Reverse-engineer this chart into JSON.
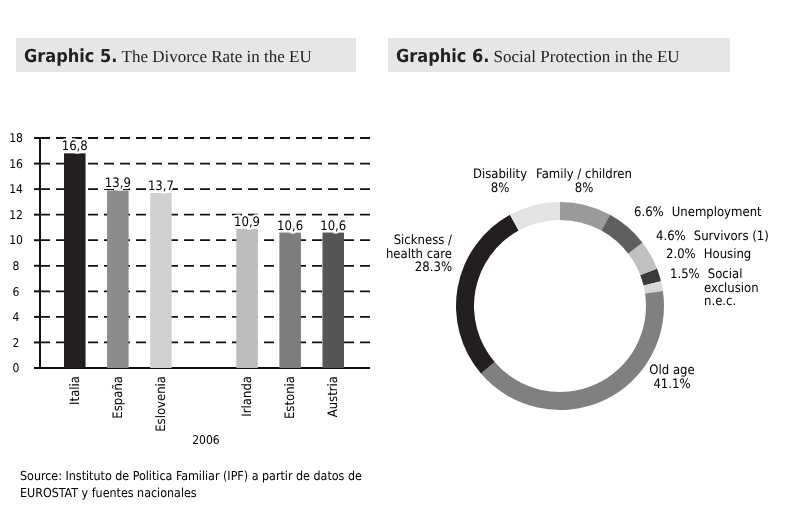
{
  "chart_data": [
    {
      "type": "bar",
      "title": "Graphic 5.",
      "subtitle": "The Divorce Rate in the EU",
      "xlabel": "2006",
      "categories": [
        "Italia",
        "España",
        "Eslovenia",
        null,
        "Irlanda",
        "Estonia",
        "Austria"
      ],
      "values": [
        16.8,
        13.9,
        13.7,
        null,
        10.9,
        10.6,
        10.6
      ],
      "value_labels": [
        "16,8",
        "13,9",
        "13,7",
        null,
        "10,9",
        "10,6",
        "10,6"
      ],
      "colors": [
        "#231f20",
        "#8c8c8c",
        "#d0d0d0",
        null,
        "#bdbdbd",
        "#7d7d7d",
        "#555555"
      ],
      "ylim": [
        0,
        18
      ],
      "yticks": [
        0,
        2,
        4,
        6,
        8,
        10,
        12,
        14,
        16,
        18
      ],
      "grid": "y",
      "annotations": [
        "Source: Instituto de Politica Familiar (IPF) a partir de datos de EUROSTAT y fuentes nacionales"
      ]
    },
    {
      "type": "donut",
      "title": "Graphic 6.",
      "subtitle": "Social Protection in the EU",
      "categories": [
        "Family / children",
        "Unemployment",
        "Survivors (1)",
        "Housing",
        "Social exclusion n.e.c.",
        "Old age",
        "Sickness / health care",
        "Disability"
      ],
      "values": [
        8,
        6.6,
        4.6,
        2.0,
        1.5,
        41.1,
        28.3,
        8
      ],
      "value_labels": [
        "8%",
        "6.6%",
        "4.6%",
        "2.0%",
        "1.5%",
        "41.1%",
        "28.3%",
        "8%"
      ],
      "colors": [
        "#9a9a9a",
        "#5f5f5f",
        "#c0c0c0",
        "#3a3a3a",
        "#d8d8d8",
        "#808080",
        "#231f20",
        "#e3e3e3"
      ]
    }
  ]
}
